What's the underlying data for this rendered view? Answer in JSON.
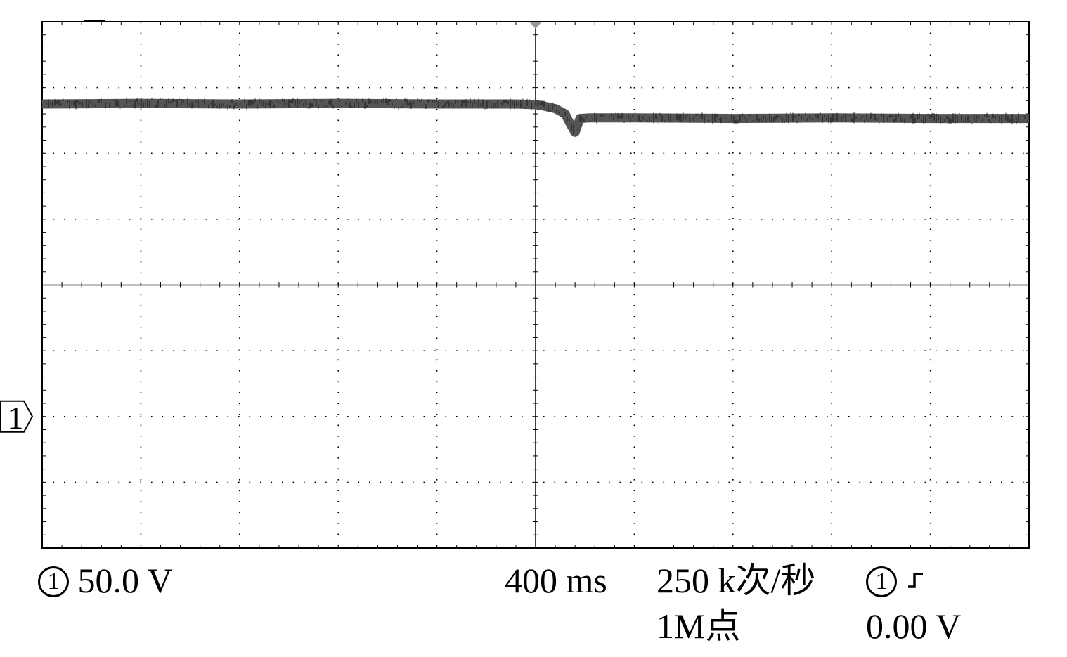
{
  "chart_data": {
    "type": "line",
    "title": "",
    "xlabel": "",
    "ylabel": "",
    "grid": true,
    "x_divisions": 10,
    "y_divisions": 8,
    "channel_marker": "1",
    "trigger_position_div": 5,
    "ground_level_div": -2,
    "xlim": [
      0,
      10
    ],
    "ylim": [
      -4,
      4
    ],
    "series": [
      {
        "color": "#555555",
        "x": [
          0,
          1,
          2,
          3,
          4,
          4.8,
          5.0,
          5.05,
          5.2,
          5.3,
          5.35,
          5.4,
          5.45,
          5.55,
          6,
          7,
          8,
          9,
          10
        ],
        "y": [
          2.75,
          2.76,
          2.75,
          2.76,
          2.75,
          2.75,
          2.74,
          2.73,
          2.68,
          2.6,
          2.45,
          2.32,
          2.53,
          2.54,
          2.54,
          2.53,
          2.54,
          2.53,
          2.53
        ]
      }
    ]
  },
  "readout": {
    "ch1_symbol": "1",
    "ch1_scale": "50.0 V",
    "timebase": "400 ms",
    "sample_rate": "250 k次/秒",
    "record_length": "1M点",
    "trigger_source_symbol": "1",
    "trigger_slope_icon": "rising-edge-icon",
    "trigger_level": "0.00 V"
  }
}
